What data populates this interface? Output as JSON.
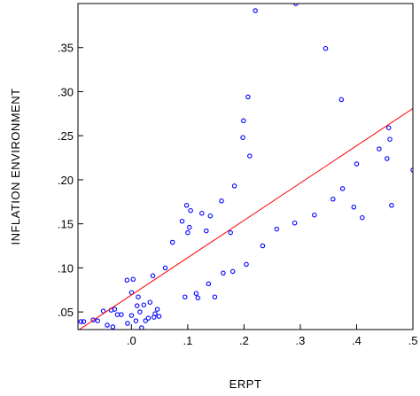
{
  "chart_data": {
    "type": "scatter",
    "xlabel": "ERPT",
    "ylabel": "INFLATION ENVIRONMENT",
    "xlim": [
      -0.095,
      0.5
    ],
    "ylim": [
      0.03,
      0.4
    ],
    "x_ticks": [
      0.0,
      0.1,
      0.2,
      0.3,
      0.4,
      0.5
    ],
    "x_tick_labels": [
      ".0",
      ".1",
      ".2",
      ".3",
      ".4",
      ".5"
    ],
    "y_ticks": [
      0.05,
      0.1,
      0.15,
      0.2,
      0.25,
      0.3,
      0.35
    ],
    "y_tick_labels": [
      ".05",
      ".10",
      ".15",
      ".20",
      ".25",
      ".30",
      ".35"
    ],
    "grid": false,
    "legend": "none",
    "marker_color": "#0000ff",
    "fit_line_color": "#ff0000",
    "fit_line": {
      "x": [
        -0.095,
        0.5
      ],
      "y": [
        0.029,
        0.281
      ]
    },
    "points": [
      {
        "x": -0.09,
        "y": 0.039
      },
      {
        "x": -0.085,
        "y": 0.039
      },
      {
        "x": -0.068,
        "y": 0.041
      },
      {
        "x": -0.06,
        "y": 0.04
      },
      {
        "x": -0.05,
        "y": 0.051
      },
      {
        "x": -0.043,
        "y": 0.035
      },
      {
        "x": -0.036,
        "y": 0.052
      },
      {
        "x": -0.033,
        "y": 0.033
      },
      {
        "x": -0.03,
        "y": 0.053
      },
      {
        "x": -0.025,
        "y": 0.047
      },
      {
        "x": -0.018,
        "y": 0.047
      },
      {
        "x": -0.008,
        "y": 0.086
      },
      {
        "x": -0.007,
        "y": 0.037
      },
      {
        "x": 0.0,
        "y": 0.072
      },
      {
        "x": 0.0,
        "y": 0.046
      },
      {
        "x": 0.003,
        "y": 0.087
      },
      {
        "x": 0.008,
        "y": 0.04
      },
      {
        "x": 0.01,
        "y": 0.057
      },
      {
        "x": 0.012,
        "y": 0.067
      },
      {
        "x": 0.015,
        "y": 0.05
      },
      {
        "x": 0.018,
        "y": 0.032
      },
      {
        "x": 0.022,
        "y": 0.058
      },
      {
        "x": 0.025,
        "y": 0.04
      },
      {
        "x": 0.03,
        "y": 0.043
      },
      {
        "x": 0.033,
        "y": 0.061
      },
      {
        "x": 0.038,
        "y": 0.091
      },
      {
        "x": 0.04,
        "y": 0.044
      },
      {
        "x": 0.042,
        "y": 0.048
      },
      {
        "x": 0.046,
        "y": 0.053
      },
      {
        "x": 0.049,
        "y": 0.045
      },
      {
        "x": 0.06,
        "y": 0.1
      },
      {
        "x": 0.073,
        "y": 0.129
      },
      {
        "x": 0.09,
        "y": 0.153
      },
      {
        "x": 0.095,
        "y": 0.067
      },
      {
        "x": 0.098,
        "y": 0.171
      },
      {
        "x": 0.1,
        "y": 0.14
      },
      {
        "x": 0.103,
        "y": 0.146
      },
      {
        "x": 0.105,
        "y": 0.165
      },
      {
        "x": 0.115,
        "y": 0.071
      },
      {
        "x": 0.118,
        "y": 0.066
      },
      {
        "x": 0.125,
        "y": 0.162
      },
      {
        "x": 0.133,
        "y": 0.142
      },
      {
        "x": 0.137,
        "y": 0.082
      },
      {
        "x": 0.14,
        "y": 0.159
      },
      {
        "x": 0.148,
        "y": 0.067
      },
      {
        "x": 0.16,
        "y": 0.176
      },
      {
        "x": 0.163,
        "y": 0.094
      },
      {
        "x": 0.176,
        "y": 0.14
      },
      {
        "x": 0.18,
        "y": 0.096
      },
      {
        "x": 0.183,
        "y": 0.193
      },
      {
        "x": 0.198,
        "y": 0.248
      },
      {
        "x": 0.199,
        "y": 0.267
      },
      {
        "x": 0.204,
        "y": 0.104
      },
      {
        "x": 0.207,
        "y": 0.294
      },
      {
        "x": 0.21,
        "y": 0.227
      },
      {
        "x": 0.22,
        "y": 0.392
      },
      {
        "x": 0.233,
        "y": 0.125
      },
      {
        "x": 0.258,
        "y": 0.144
      },
      {
        "x": 0.29,
        "y": 0.151
      },
      {
        "x": 0.292,
        "y": 0.4
      },
      {
        "x": 0.325,
        "y": 0.16
      },
      {
        "x": 0.345,
        "y": 0.349
      },
      {
        "x": 0.358,
        "y": 0.178
      },
      {
        "x": 0.373,
        "y": 0.291
      },
      {
        "x": 0.375,
        "y": 0.19
      },
      {
        "x": 0.395,
        "y": 0.169
      },
      {
        "x": 0.4,
        "y": 0.218
      },
      {
        "x": 0.41,
        "y": 0.157
      },
      {
        "x": 0.44,
        "y": 0.235
      },
      {
        "x": 0.454,
        "y": 0.224
      },
      {
        "x": 0.457,
        "y": 0.259
      },
      {
        "x": 0.459,
        "y": 0.246
      },
      {
        "x": 0.462,
        "y": 0.171
      },
      {
        "x": 0.5,
        "y": 0.211
      }
    ]
  }
}
